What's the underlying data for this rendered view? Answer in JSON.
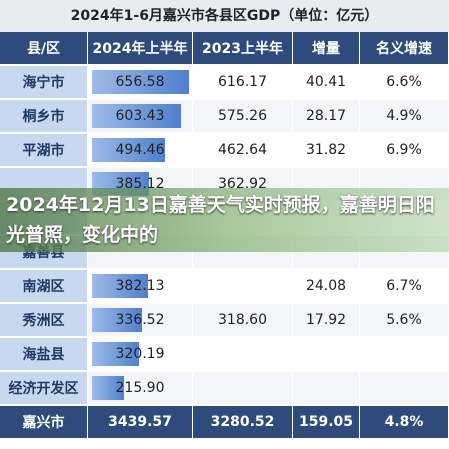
{
  "table": {
    "title": "2024年1-6月嘉兴市各县区GDP（单位：亿元）",
    "header": [
      "县/区",
      "2024年上半年",
      "2023上半年",
      "增量",
      "名义增速"
    ],
    "rows": [
      [
        "海宁市",
        "656.58",
        "616.17",
        "40.41",
        "6.6%"
      ],
      [
        "桐乡市",
        "603.43",
        "575.26",
        "28.17",
        "4.9%"
      ],
      [
        "平湖市",
        "494.46",
        "462.64",
        "31.82",
        "6.9%"
      ],
      [
        null,
        "385.12",
        "362.92",
        null,
        null
      ],
      [
        null,
        null,
        null,
        null,
        null
      ],
      [
        "嘉善县",
        null,
        null,
        null,
        null
      ],
      [
        "南湖区",
        "382.13",
        null,
        "24.08",
        "6.7%"
      ],
      [
        "秀洲区",
        "336.52",
        "318.60",
        "17.92",
        "5.6%"
      ],
      [
        "海盐县",
        "320.19",
        null,
        null,
        null
      ],
      [
        "经济开发区",
        "215.90",
        null,
        null,
        null
      ]
    ],
    "total": [
      "嘉兴市",
      "3439.57",
      "3280.52",
      "159.05",
      "4.8%"
    ]
  },
  "banner": "2024年12月13日嘉善天气实时预报，嘉善明日阳光普照，变化中的"
}
